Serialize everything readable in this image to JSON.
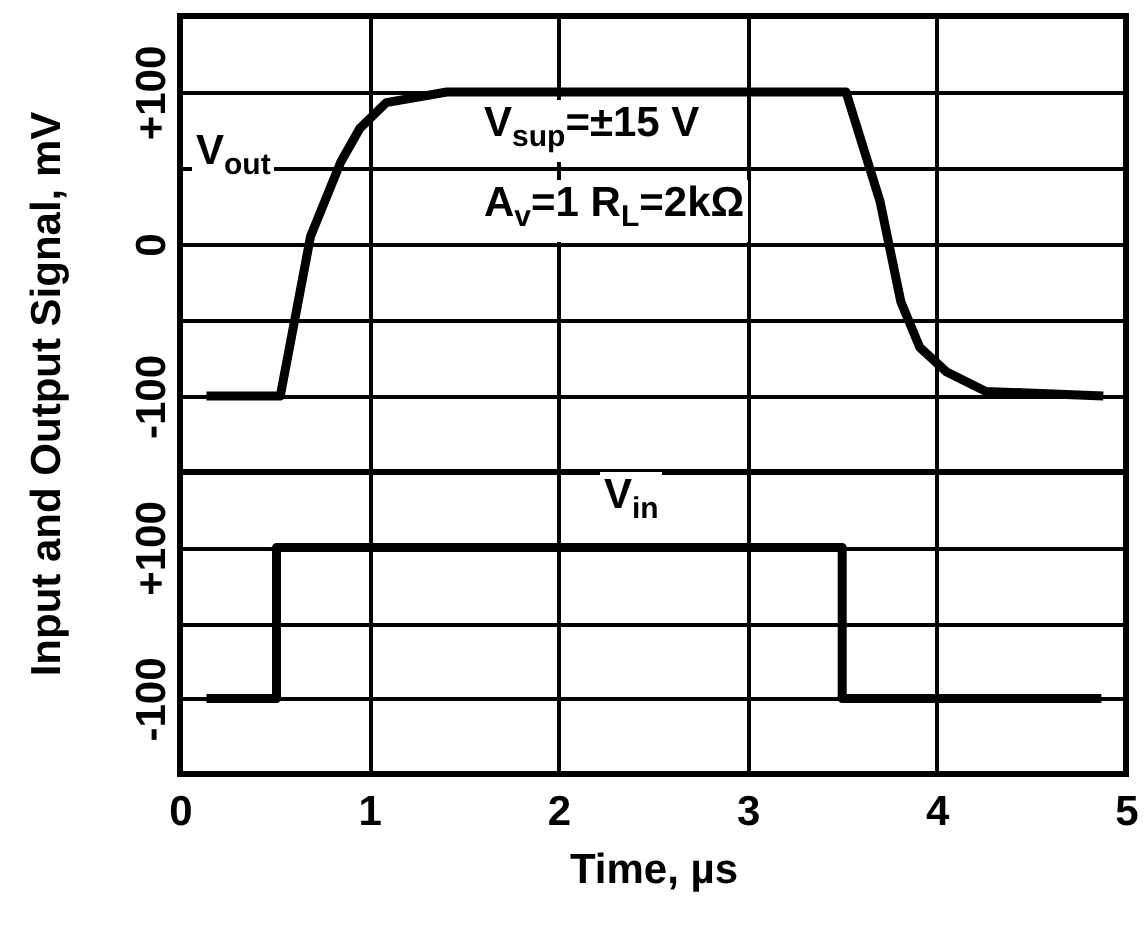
{
  "chart_data": [
    {
      "type": "line",
      "ylabel": "Input and Output Signal, mV",
      "annotations": [
        "V$_{sup}$=±15 V",
        "A$_{v}$=1 R$_{L}$=2kΩ"
      ],
      "series": [
        {
          "name": "V$_{out}$",
          "color": "#000000",
          "x": [
            0.14,
            0.53,
            0.69,
            0.85,
            0.95,
            1.09,
            1.41,
            3.52,
            3.7,
            3.81,
            3.91,
            4.05,
            4.26,
            4.88
          ],
          "values": [
            -100,
            -100,
            5,
            54,
            76,
            93,
            100,
            100,
            28,
            -38,
            -68,
            -84,
            -97,
            -100
          ]
        }
      ],
      "xlim": [
        0,
        5
      ],
      "xticks": [
        0,
        1,
        2,
        3,
        4,
        5
      ],
      "ylim": [
        -150,
        150
      ],
      "yticks": [
        {
          "value": -150,
          "label": null
        },
        "-100",
        {
          "value": -50,
          "label": null
        },
        0,
        {
          "value": 50,
          "label": null
        },
        {
          "value": 100,
          "label": "+100"
        },
        {
          "value": 150,
          "label": null
        }
      ],
      "tick_labels": "y",
      "grid": true,
      "line_style": "solid",
      "marker": "none"
    },
    {
      "type": "line",
      "xlabel": "Time, µs",
      "series": [
        {
          "name": "V$_{in}$",
          "color": "#000000",
          "x": [
            0.14,
            0.51,
            0.51,
            3.5,
            3.5,
            4.87
          ],
          "values": [
            -100,
            -100,
            100,
            100,
            -100,
            -100
          ]
        }
      ],
      "xlim": [
        0,
        5
      ],
      "xticks": [
        0,
        1,
        2,
        3,
        4,
        5
      ],
      "ylim": [
        -200,
        200
      ],
      "yticks": [
        {
          "value": -200,
          "label": null
        },
        -100,
        {
          "value": 0,
          "label": null
        },
        {
          "value": 100,
          "label": "+100"
        },
        {
          "value": 200,
          "label": null
        }
      ],
      "grid": true,
      "line_style": "solid",
      "marker": "none"
    }
  ]
}
